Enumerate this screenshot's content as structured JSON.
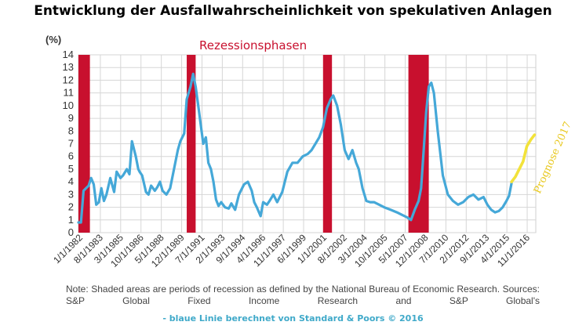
{
  "title": "Entwicklung der Ausfallwahrscheinlichkeit von spekulativen Anlagen",
  "footer": "-  blaue Linie berechnet von Standard & Poors © 2016",
  "note": "Note: Shaded areas are periods of recession as defined by the National Bureau of Economic Research. Sources: S&P Global Fixed Income Research and S&P Global's",
  "colors": {
    "line": "#45a8d8",
    "recession": "#c8102e",
    "forecast": "#f2e23a",
    "forecast_text": "#e8c81e"
  },
  "chart_data": {
    "type": "line",
    "ylabel": "(%)",
    "ylim": [
      0,
      14
    ],
    "yticks": [
      0,
      1,
      2,
      3,
      4,
      5,
      6,
      7,
      8,
      9,
      10,
      11,
      12,
      13,
      14
    ],
    "xlim": [
      1982.0,
      2017.9
    ],
    "xtick_labels": [
      "1/1/1982",
      "8/1/1983",
      "3/1/1985",
      "10/1/1986",
      "5/1/1988",
      "12/1/1989",
      "7/1/1991",
      "2/1/1993",
      "9/1/1994",
      "4/1/1996",
      "11/1/1997",
      "6/1/1999",
      "1/1/2001",
      "8/1/2002",
      "3/1/2004",
      "10/1/2005",
      "5/1/2007",
      "12/1/2008",
      "7/1/2010",
      "2/1/2012",
      "9/1/2013",
      "4/1/2015",
      "11/1/2016"
    ],
    "grid": true,
    "recession_label": "Rezessionsphasen",
    "recessions": [
      [
        1982.0,
        1982.9
      ],
      [
        1990.5,
        1991.2
      ],
      [
        2001.2,
        2001.9
      ],
      [
        2007.9,
        2009.5
      ]
    ],
    "series": [
      {
        "x": [
          1982.0,
          1982.2,
          1982.4,
          1982.6,
          1982.8,
          1983.0,
          1983.2,
          1983.4,
          1983.6,
          1983.8,
          1984.0,
          1984.2,
          1984.5,
          1984.8,
          1985.0,
          1985.3,
          1985.5,
          1985.8,
          1986.0,
          1986.2,
          1986.5,
          1986.7,
          1986.8,
          1987.0,
          1987.3,
          1987.5,
          1987.7,
          1988.0,
          1988.2,
          1988.4,
          1988.6,
          1988.9,
          1989.2,
          1989.5,
          1989.8,
          1990.0,
          1990.3,
          1990.5,
          1990.8,
          1991.0,
          1991.2,
          1991.4,
          1991.6,
          1991.8,
          1992.0,
          1992.2,
          1992.4,
          1992.6,
          1992.8,
          1993.0,
          1993.2,
          1993.5,
          1993.8,
          1994.0,
          1994.3,
          1994.6,
          1995.0,
          1995.3,
          1995.6,
          1995.8,
          1996.0,
          1996.3,
          1996.5,
          1996.8,
          1997.0,
          1997.3,
          1997.6,
          1998.0,
          1998.4,
          1998.8,
          1999.2,
          1999.6,
          2000.0,
          2000.3,
          2000.6,
          2000.9,
          2001.2,
          2001.5,
          2001.8,
          2002.0,
          2002.3,
          2002.6,
          2002.9,
          2003.2,
          2003.5,
          2003.8,
          2004.0,
          2004.3,
          2004.6,
          2004.9,
          2005.2,
          2005.6,
          2006.0,
          2006.5,
          2007.0,
          2007.4,
          2007.8,
          2008.1,
          2008.4,
          2008.7,
          2008.9,
          2009.1,
          2009.3,
          2009.5,
          2009.7,
          2009.9,
          2010.2,
          2010.6,
          2011.0,
          2011.4,
          2011.8,
          2012.2,
          2012.6,
          2013.0,
          2013.4,
          2013.8,
          2014.1,
          2014.4,
          2014.7,
          2015.0,
          2015.3,
          2015.6,
          2015.8,
          2016.0
        ],
        "y": [
          0.8,
          0.8,
          3.3,
          3.5,
          3.7,
          4.3,
          3.8,
          2.2,
          2.4,
          3.5,
          2.5,
          3.0,
          4.3,
          3.2,
          4.8,
          4.3,
          4.5,
          5.0,
          4.6,
          7.2,
          6.0,
          5.0,
          4.8,
          4.5,
          3.2,
          3.0,
          3.7,
          3.3,
          3.6,
          4.0,
          3.3,
          3.0,
          3.5,
          5.0,
          6.5,
          7.2,
          7.8,
          10.5,
          11.5,
          12.5,
          11.5,
          10.0,
          8.5,
          7.0,
          7.5,
          5.5,
          5.0,
          4.0,
          2.6,
          2.1,
          2.4,
          2.0,
          1.9,
          2.3,
          1.8,
          3.0,
          3.8,
          4.0,
          3.3,
          2.4,
          2.0,
          1.3,
          2.4,
          2.2,
          2.5,
          3.0,
          2.4,
          3.2,
          4.8,
          5.5,
          5.5,
          6.0,
          6.2,
          6.5,
          7.0,
          7.5,
          8.3,
          9.8,
          10.5,
          10.8,
          10.0,
          8.5,
          6.5,
          5.8,
          6.5,
          5.5,
          5.0,
          3.5,
          2.5,
          2.4,
          2.4,
          2.2,
          2.0,
          1.8,
          1.6,
          1.4,
          1.2,
          1.0,
          1.8,
          2.5,
          3.5,
          6.5,
          9.5,
          11.5,
          11.8,
          11.0,
          8.0,
          4.5,
          3.0,
          2.5,
          2.2,
          2.4,
          2.8,
          3.0,
          2.6,
          2.8,
          2.2,
          1.8,
          1.6,
          1.7,
          2.0,
          2.5,
          2.9,
          3.9
        ]
      },
      {
        "x": [
          2016.0,
          2016.3,
          2016.6,
          2016.9,
          2017.2,
          2017.5,
          2017.8
        ],
        "y": [
          4.0,
          4.4,
          5.0,
          5.6,
          6.8,
          7.3,
          7.7
        ]
      }
    ],
    "forecast_label": "Prognose 2017"
  }
}
